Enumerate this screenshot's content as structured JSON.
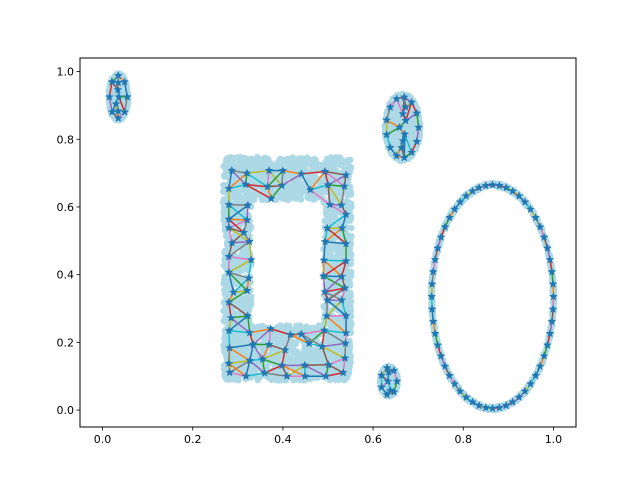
{
  "chart_data": {
    "type": "scatter",
    "title": "",
    "xlabel": "",
    "ylabel": "",
    "xlim": [
      -0.05,
      1.05
    ],
    "ylim": [
      -0.05,
      1.04
    ],
    "grid": false,
    "legend": "none",
    "x_ticks": [
      0.0,
      0.2,
      0.4,
      0.6,
      0.8,
      1.0
    ],
    "y_ticks": [
      0.0,
      0.2,
      0.4,
      0.6,
      0.8,
      1.0
    ],
    "x_tick_labels": [
      "0.0",
      "0.2",
      "0.4",
      "0.6",
      "0.8",
      "1.0"
    ],
    "y_tick_labels": [
      "0.0",
      "0.2",
      "0.4",
      "0.6",
      "0.8",
      "1.0"
    ],
    "colors": {
      "cloud": "#add8e6",
      "star": "#1f77b4",
      "edges": [
        "#1f77b4",
        "#ff7f0e",
        "#2ca02c",
        "#d62728",
        "#9467bd",
        "#8c564b",
        "#e377c2",
        "#7f7f7f",
        "#bcbd22",
        "#17becf"
      ]
    },
    "shapes": [
      {
        "name": "small-ellipse-top-left",
        "kind": "ellipse",
        "center": [
          0.035,
          0.925
        ],
        "radii": [
          0.022,
          0.07
        ],
        "vertices": 13
      },
      {
        "name": "ellipse-top-middle",
        "kind": "ellipse",
        "center": [
          0.665,
          0.835
        ],
        "radii": [
          0.04,
          0.1
        ],
        "vertices": 20
      },
      {
        "name": "rectangular-frame",
        "kind": "frame",
        "outer": [
          0.28,
          0.1,
          0.54,
          0.735
        ],
        "inner": [
          0.33,
          0.25,
          0.49,
          0.62
        ]
      },
      {
        "name": "tiny-ellipse-bottom",
        "kind": "ellipse",
        "center": [
          0.635,
          0.085
        ],
        "radii": [
          0.02,
          0.045
        ],
        "vertices": 10
      },
      {
        "name": "large-ring-right",
        "kind": "ring",
        "center": [
          0.865,
          0.335
        ],
        "radii": [
          0.135,
          0.33
        ],
        "vertices": 56
      }
    ]
  }
}
